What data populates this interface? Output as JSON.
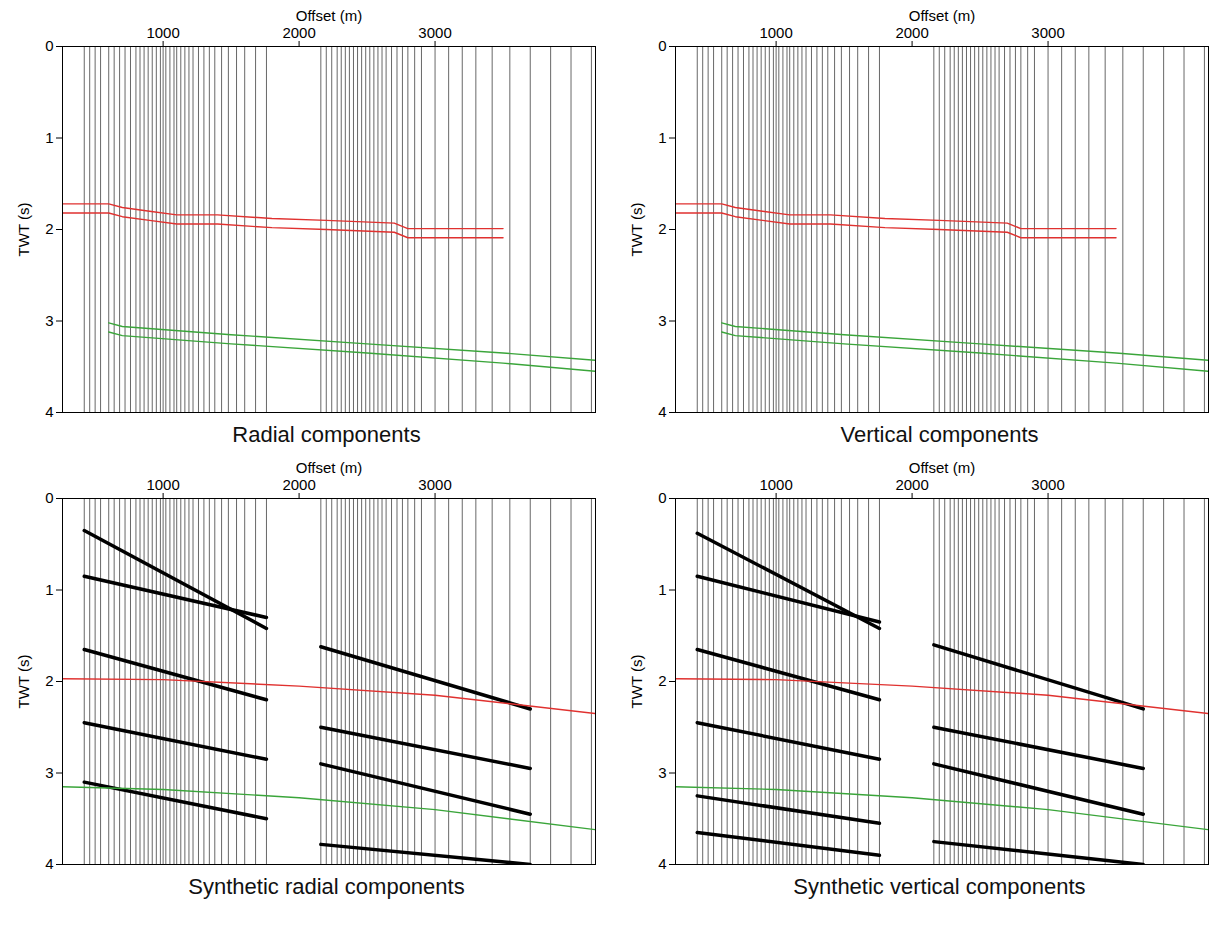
{
  "chart_data": [
    {
      "type": "wiggle",
      "title": "Radial components",
      "xlabel": "Offset (m)",
      "ylabel": "TWT (s)",
      "xlim": [
        260,
        4180
      ],
      "ylim": [
        0,
        4
      ],
      "xticks": [
        1000,
        2000,
        3000
      ],
      "yticks": [
        0,
        1,
        2,
        3,
        4
      ],
      "trace_offsets": [
        420,
        460,
        500,
        540,
        600,
        640,
        680,
        720,
        760,
        800,
        830,
        860,
        890,
        920,
        950,
        980,
        1000,
        1020,
        1050,
        1080,
        1100,
        1130,
        1160,
        1190,
        1220,
        1260,
        1300,
        1340,
        1380,
        1430,
        1480,
        1540,
        1600,
        1680,
        1760,
        2160,
        2200,
        2240,
        2280,
        2310,
        2340,
        2370,
        2400,
        2430,
        2460,
        2490,
        2520,
        2550,
        2580,
        2610,
        2640,
        2680,
        2720,
        2760,
        2800,
        2850,
        2900,
        3000,
        3100,
        3200,
        3300,
        3420,
        3550,
        3700,
        3850,
        4000,
        4150
      ],
      "series": [
        {
          "color": "#e0312f",
          "x": [
            260,
            600,
            700,
            900,
            1100,
            1400,
            1800,
            2200,
            2700,
            2800,
            3500
          ],
          "y": [
            1.72,
            1.72,
            1.76,
            1.8,
            1.84,
            1.84,
            1.88,
            1.9,
            1.93,
            1.99,
            1.99
          ]
        },
        {
          "color": "#e0312f",
          "x": [
            260,
            600,
            700,
            900,
            1100,
            1400,
            1800,
            2200,
            2700,
            2800,
            3500
          ],
          "y": [
            1.82,
            1.82,
            1.86,
            1.9,
            1.94,
            1.94,
            1.98,
            2.0,
            2.03,
            2.09,
            2.09
          ]
        },
        {
          "color": "#3aa53a",
          "x": [
            600,
            700,
            1500,
            2500,
            3500,
            4180
          ],
          "y": [
            3.02,
            3.06,
            3.15,
            3.25,
            3.35,
            3.43
          ]
        },
        {
          "color": "#3aa53a",
          "x": [
            600,
            700,
            1500,
            2500,
            3500,
            4180
          ],
          "y": [
            3.12,
            3.16,
            3.25,
            3.35,
            3.46,
            3.55
          ]
        }
      ]
    },
    {
      "type": "wiggle",
      "title": "Vertical components",
      "xlabel": "Offset (m)",
      "ylabel": "TWT (s)",
      "xlim": [
        260,
        4180
      ],
      "ylim": [
        0,
        4
      ],
      "xticks": [
        1000,
        2000,
        3000
      ],
      "yticks": [
        0,
        1,
        2,
        3,
        4
      ],
      "trace_offsets": [
        420,
        460,
        500,
        540,
        600,
        640,
        680,
        720,
        760,
        800,
        830,
        860,
        890,
        920,
        950,
        980,
        1000,
        1020,
        1050,
        1080,
        1100,
        1130,
        1160,
        1190,
        1220,
        1260,
        1300,
        1340,
        1380,
        1430,
        1480,
        1540,
        1600,
        1680,
        1760,
        2160,
        2200,
        2240,
        2280,
        2310,
        2340,
        2370,
        2400,
        2430,
        2460,
        2490,
        2520,
        2550,
        2580,
        2610,
        2640,
        2680,
        2720,
        2760,
        2800,
        2850,
        2900,
        3000,
        3100,
        3200,
        3300,
        3420,
        3550,
        3700,
        3850,
        4000,
        4150
      ],
      "series": [
        {
          "color": "#e0312f",
          "x": [
            260,
            600,
            700,
            900,
            1100,
            1400,
            1800,
            2200,
            2700,
            2800,
            3500
          ],
          "y": [
            1.72,
            1.72,
            1.76,
            1.8,
            1.84,
            1.84,
            1.88,
            1.9,
            1.93,
            1.99,
            1.99
          ]
        },
        {
          "color": "#e0312f",
          "x": [
            260,
            600,
            700,
            900,
            1100,
            1400,
            1800,
            2200,
            2700,
            2800,
            3500
          ],
          "y": [
            1.82,
            1.82,
            1.86,
            1.9,
            1.94,
            1.94,
            1.98,
            2.0,
            2.03,
            2.09,
            2.09
          ]
        },
        {
          "color": "#3aa53a",
          "x": [
            600,
            700,
            1500,
            2500,
            3500,
            4180
          ],
          "y": [
            3.02,
            3.06,
            3.15,
            3.25,
            3.35,
            3.43
          ]
        },
        {
          "color": "#3aa53a",
          "x": [
            600,
            700,
            1500,
            2500,
            3500,
            4180
          ],
          "y": [
            3.12,
            3.16,
            3.25,
            3.35,
            3.46,
            3.55
          ]
        }
      ]
    },
    {
      "type": "wiggle",
      "title": "Synthetic radial components",
      "xlabel": "Offset (m)",
      "ylabel": "TWT (s)",
      "xlim": [
        260,
        4180
      ],
      "ylim": [
        0,
        4
      ],
      "xticks": [
        1000,
        2000,
        3000
      ],
      "yticks": [
        0,
        1,
        2,
        3,
        4
      ],
      "trace_offsets": [
        420,
        460,
        500,
        540,
        600,
        640,
        680,
        720,
        760,
        800,
        830,
        860,
        890,
        920,
        950,
        980,
        1000,
        1020,
        1050,
        1080,
        1100,
        1130,
        1160,
        1190,
        1220,
        1260,
        1300,
        1340,
        1380,
        1430,
        1480,
        1540,
        1600,
        1680,
        1760,
        2160,
        2200,
        2240,
        2280,
        2310,
        2340,
        2370,
        2400,
        2430,
        2460,
        2490,
        2520,
        2550,
        2580,
        2610,
        2640,
        2680,
        2720,
        2760,
        2800,
        2850,
        2900,
        3000,
        3100,
        3200,
        3300,
        3420,
        3550,
        3700,
        3850,
        4000,
        4150
      ],
      "series": [
        {
          "color": "#000000",
          "x": [
            420,
            1760
          ],
          "y": [
            0.35,
            1.42
          ]
        },
        {
          "color": "#000000",
          "x": [
            420,
            1760
          ],
          "y": [
            0.85,
            1.3
          ]
        },
        {
          "color": "#000000",
          "x": [
            420,
            1760
          ],
          "y": [
            1.65,
            2.2
          ]
        },
        {
          "color": "#000000",
          "x": [
            2160,
            3700
          ],
          "y": [
            1.62,
            2.3
          ]
        },
        {
          "color": "#000000",
          "x": [
            420,
            1760
          ],
          "y": [
            2.45,
            2.85
          ]
        },
        {
          "color": "#000000",
          "x": [
            2160,
            3700
          ],
          "y": [
            2.5,
            2.95
          ]
        },
        {
          "color": "#000000",
          "x": [
            420,
            1760
          ],
          "y": [
            3.1,
            3.5
          ]
        },
        {
          "color": "#000000",
          "x": [
            2160,
            3700
          ],
          "y": [
            2.9,
            3.45
          ]
        },
        {
          "color": "#000000",
          "x": [
            2160,
            3700
          ],
          "y": [
            3.78,
            4.0
          ]
        },
        {
          "color": "#e0312f",
          "x": [
            260,
            1000,
            2000,
            3000,
            4180
          ],
          "y": [
            1.97,
            1.98,
            2.05,
            2.15,
            2.35
          ]
        },
        {
          "color": "#3aa53a",
          "x": [
            260,
            1000,
            2000,
            3000,
            4180
          ],
          "y": [
            3.15,
            3.18,
            3.27,
            3.4,
            3.62
          ]
        }
      ]
    },
    {
      "type": "wiggle",
      "title": "Synthetic vertical components",
      "xlabel": "Offset (m)",
      "ylabel": "TWT (s)",
      "xlim": [
        260,
        4180
      ],
      "ylim": [
        0,
        4
      ],
      "xticks": [
        1000,
        2000,
        3000
      ],
      "yticks": [
        0,
        1,
        2,
        3,
        4
      ],
      "trace_offsets": [
        420,
        460,
        500,
        540,
        600,
        640,
        680,
        720,
        760,
        800,
        830,
        860,
        890,
        920,
        950,
        980,
        1000,
        1020,
        1050,
        1080,
        1100,
        1130,
        1160,
        1190,
        1220,
        1260,
        1300,
        1340,
        1380,
        1430,
        1480,
        1540,
        1600,
        1680,
        1760,
        2160,
        2200,
        2240,
        2280,
        2310,
        2340,
        2370,
        2400,
        2430,
        2460,
        2490,
        2520,
        2550,
        2580,
        2610,
        2640,
        2680,
        2720,
        2760,
        2800,
        2850,
        2900,
        3000,
        3100,
        3200,
        3300,
        3420,
        3550,
        3700,
        3850,
        4000,
        4150
      ],
      "series": [
        {
          "color": "#000000",
          "x": [
            420,
            1760
          ],
          "y": [
            0.38,
            1.42
          ]
        },
        {
          "color": "#000000",
          "x": [
            420,
            1760
          ],
          "y": [
            0.85,
            1.35
          ]
        },
        {
          "color": "#000000",
          "x": [
            420,
            1760
          ],
          "y": [
            1.65,
            2.2
          ]
        },
        {
          "color": "#000000",
          "x": [
            2160,
            3700
          ],
          "y": [
            1.6,
            2.3
          ]
        },
        {
          "color": "#000000",
          "x": [
            420,
            1760
          ],
          "y": [
            2.45,
            2.85
          ]
        },
        {
          "color": "#000000",
          "x": [
            2160,
            3700
          ],
          "y": [
            2.5,
            2.95
          ]
        },
        {
          "color": "#000000",
          "x": [
            420,
            1760
          ],
          "y": [
            3.25,
            3.55
          ]
        },
        {
          "color": "#000000",
          "x": [
            2160,
            3700
          ],
          "y": [
            2.9,
            3.45
          ]
        },
        {
          "color": "#000000",
          "x": [
            420,
            1760
          ],
          "y": [
            3.65,
            3.9
          ]
        },
        {
          "color": "#000000",
          "x": [
            2160,
            3700
          ],
          "y": [
            3.75,
            4.0
          ]
        },
        {
          "color": "#e0312f",
          "x": [
            260,
            1000,
            2000,
            3000,
            4180
          ],
          "y": [
            1.97,
            1.98,
            2.05,
            2.15,
            2.35
          ]
        },
        {
          "color": "#3aa53a",
          "x": [
            260,
            1000,
            2000,
            3000,
            4180
          ],
          "y": [
            3.15,
            3.18,
            3.27,
            3.4,
            3.62
          ]
        }
      ]
    }
  ]
}
